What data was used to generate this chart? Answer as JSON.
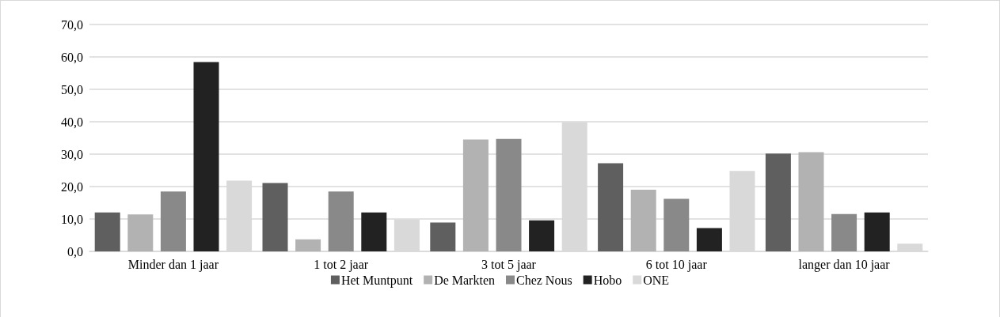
{
  "chart_data": {
    "type": "bar",
    "categories": [
      "Minder dan 1 jaar",
      "1 tot 2 jaar",
      "3 tot 5 jaar",
      "6 tot 10 jaar",
      "langer dan 10 jaar"
    ],
    "series": [
      {
        "name": "Het Muntpunt",
        "color": "#5f5f5f",
        "values": [
          12.0,
          21.1,
          8.9,
          27.2,
          30.2
        ]
      },
      {
        "name": "De Markten",
        "color": "#b2b2b2",
        "values": [
          11.4,
          3.7,
          34.5,
          19.0,
          30.6
        ]
      },
      {
        "name": "Chez Nous",
        "color": "#898989",
        "values": [
          18.5,
          18.5,
          34.7,
          16.2,
          11.5
        ]
      },
      {
        "name": "Hobo",
        "color": "#222222",
        "values": [
          58.4,
          12.0,
          9.6,
          7.2,
          12.0
        ]
      },
      {
        "name": "ONE",
        "color": "#d9d9d9",
        "values": [
          21.8,
          9.9,
          39.9,
          24.8,
          2.4
        ]
      }
    ],
    "ylim": [
      0,
      70
    ],
    "yticks": [
      {
        "value": 0,
        "label": "0,0"
      },
      {
        "value": 10,
        "label": "10,0"
      },
      {
        "value": 20,
        "label": "20,0"
      },
      {
        "value": 30,
        "label": "30,0"
      },
      {
        "value": 40,
        "label": "40,0"
      },
      {
        "value": 50,
        "label": "50,0"
      },
      {
        "value": 60,
        "label": "60,0"
      },
      {
        "value": 70,
        "label": "70,0"
      }
    ],
    "grid": "y",
    "legend": "bottom"
  }
}
